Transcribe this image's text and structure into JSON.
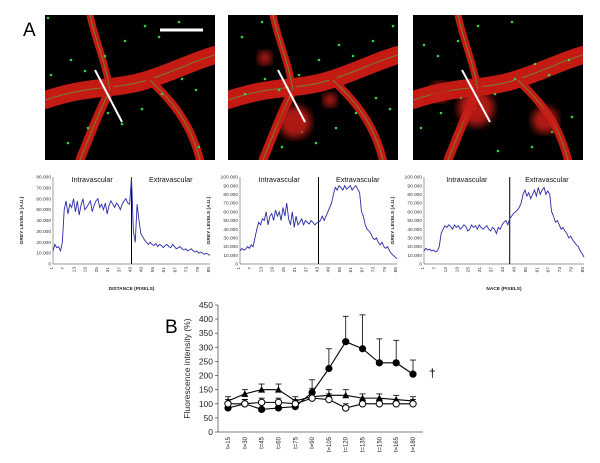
{
  "figure": {
    "panel_a_label": "A",
    "panel_b_label": "B",
    "scale_bar": "white scale bar in first micrograph",
    "micrographs": [
      {
        "description": "vessel",
        "line": "white line across vessel"
      },
      {
        "description": "vessel with red extravasation",
        "line": "white line across vessel"
      },
      {
        "description": "vessel with red extravasation",
        "line": "white line across vessel"
      }
    ],
    "colors": {
      "background": "#000000",
      "vessel": "#c41a14",
      "green": "#37d14a",
      "line": "#2a2aa8",
      "scale": "#ffffff"
    }
  },
  "chart_data": [
    {
      "type": "line",
      "ylabel": "GREY LEVELS (A.U.)",
      "xlabel": "DISTANCE (PIXELS)",
      "region_labels": [
        "Intravascular",
        "Extravascular"
      ],
      "ylim": [
        0,
        80000
      ],
      "yticks": [
        "0",
        "10.000",
        "20.000",
        "30.000",
        "40.000",
        "50.000",
        "60.000",
        "70.000",
        "80.000"
      ],
      "xticks": [
        "1",
        "7",
        "13",
        "19",
        "25",
        "31",
        "37",
        "43",
        "49",
        "55",
        "61",
        "67",
        "73",
        "79",
        "85"
      ],
      "divider_x": 43,
      "series": [
        {
          "values": [
            12000,
            18000,
            15000,
            16000,
            12000,
            20000,
            50000,
            58000,
            46000,
            55000,
            52000,
            60000,
            48000,
            58000,
            45000,
            54000,
            60000,
            50000,
            52000,
            55000,
            58000,
            48000,
            54000,
            58000,
            60000,
            52000,
            55000,
            50000,
            56000,
            46000,
            54000,
            58000,
            55000,
            52000,
            56000,
            54000,
            50000,
            55000,
            58000,
            60000,
            56000,
            55000,
            80000,
            30000,
            20000,
            55000,
            40000,
            28000,
            25000,
            22000,
            20000,
            18000,
            20000,
            18000,
            17000,
            19000,
            16000,
            18000,
            17000,
            15000,
            17000,
            18000,
            16000,
            15000,
            18000,
            16000,
            14000,
            15000,
            16000,
            14000,
            13000,
            14000,
            12000,
            13000,
            14000,
            12000,
            11000,
            12000,
            10000,
            11000,
            10000,
            9000,
            10000,
            9000,
            8000
          ]
        }
      ]
    },
    {
      "type": "line",
      "ylabel": "GREY LEVELS (A.U.)",
      "xlabel": "",
      "region_labels": [
        "Intravascular",
        "Extravascular"
      ],
      "ylim": [
        0,
        100000
      ],
      "yticks": [
        "0",
        "10.000",
        "20.000",
        "30.000",
        "40.000",
        "50.000",
        "60.000",
        "70.000",
        "80.000",
        "90.000",
        "100.000"
      ],
      "xticks": [
        "1",
        "7",
        "13",
        "19",
        "25",
        "31",
        "37",
        "43",
        "49",
        "55",
        "61",
        "67",
        "73",
        "79",
        "85"
      ],
      "divider_x": 43,
      "series": [
        {
          "values": [
            15000,
            18000,
            16000,
            17000,
            20000,
            18000,
            22000,
            20000,
            30000,
            40000,
            48000,
            45000,
            52000,
            50000,
            60000,
            45000,
            55000,
            58000,
            50000,
            62000,
            55000,
            60000,
            50000,
            65000,
            55000,
            70000,
            52000,
            45000,
            60000,
            42000,
            55000,
            45000,
            48000,
            52000,
            45000,
            50000,
            48000,
            46000,
            50000,
            48000,
            45000,
            47000,
            48000,
            50000,
            55000,
            50000,
            55000,
            60000,
            65000,
            70000,
            80000,
            88000,
            85000,
            90000,
            88000,
            85000,
            90000,
            86000,
            88000,
            90000,
            85000,
            88000,
            90000,
            86000,
            82000,
            60000,
            55000,
            45000,
            40000,
            38000,
            35000,
            30000,
            28000,
            30000,
            25000,
            22000,
            25000,
            20000,
            18000,
            20000,
            15000,
            12000,
            10000,
            8000,
            6000
          ]
        }
      ]
    },
    {
      "type": "line",
      "ylabel": "GREY LEVELS (A.U.)",
      "xlabel": "NACE (PIXELS)",
      "region_labels": [
        "Intravascular",
        "Extravascular"
      ],
      "ylim": [
        0,
        100000
      ],
      "yticks": [
        "0",
        "10.000",
        "20.000",
        "30.000",
        "40.000",
        "50.000",
        "60.000",
        "70.000",
        "80.000",
        "90.000",
        "100.000"
      ],
      "xticks": [
        "1",
        "7",
        "13",
        "19",
        "25",
        "31",
        "37",
        "43",
        "49",
        "55",
        "61",
        "67",
        "73",
        "79",
        "85"
      ],
      "divider_x": 46,
      "series": [
        {
          "values": [
            15000,
            18000,
            16000,
            17000,
            15000,
            16000,
            14000,
            15000,
            20000,
            35000,
            40000,
            44000,
            42000,
            45000,
            43000,
            40000,
            45000,
            42000,
            44000,
            40000,
            42000,
            45000,
            43000,
            38000,
            40000,
            45000,
            42000,
            44000,
            40000,
            45000,
            42000,
            40000,
            42000,
            44000,
            40000,
            38000,
            42000,
            40000,
            35000,
            42000,
            40000,
            45000,
            48000,
            50000,
            45000,
            52000,
            55000,
            58000,
            60000,
            62000,
            65000,
            70000,
            80000,
            85000,
            78000,
            82000,
            75000,
            80000,
            85000,
            78000,
            88000,
            80000,
            85000,
            88000,
            80000,
            84000,
            80000,
            60000,
            55000,
            48000,
            50000,
            45000,
            40000,
            42000,
            38000,
            35000,
            30000,
            32000,
            28000,
            25000,
            22000,
            20000,
            15000,
            12000,
            8000
          ]
        }
      ]
    },
    {
      "type": "line",
      "ylabel": "Fluorescence intensity (%)",
      "xlabel": "",
      "ylim": [
        0,
        450
      ],
      "yticks": [
        "0",
        "50",
        "100",
        "150",
        "200",
        "250",
        "300",
        "350",
        "400",
        "450"
      ],
      "categories": [
        "t=15",
        "t=30",
        "t=45",
        "t=60",
        "t=75",
        "t=90",
        "t=105",
        "t=120",
        "t=135",
        "t=150",
        "t=165",
        "t=180"
      ],
      "annotation": "†",
      "series": [
        {
          "marker": "filled-circle",
          "values": [
            85,
            100,
            80,
            85,
            90,
            140,
            225,
            320,
            295,
            245,
            245,
            205
          ],
          "errors": [
            10,
            15,
            20,
            15,
            20,
            45,
            70,
            90,
            120,
            85,
            80,
            50
          ]
        },
        {
          "marker": "filled-triangle",
          "values": [
            110,
            135,
            150,
            150,
            110,
            125,
            130,
            130,
            120,
            120,
            115,
            110
          ],
          "errors": [
            15,
            15,
            20,
            20,
            15,
            20,
            20,
            20,
            15,
            15,
            15,
            15
          ]
        },
        {
          "marker": "open-circle",
          "values": [
            100,
            100,
            105,
            105,
            100,
            120,
            115,
            85,
            100,
            100,
            100,
            100
          ],
          "errors": [
            15,
            15,
            15,
            15,
            15,
            35,
            20,
            15,
            15,
            15,
            15,
            15
          ]
        }
      ]
    }
  ]
}
